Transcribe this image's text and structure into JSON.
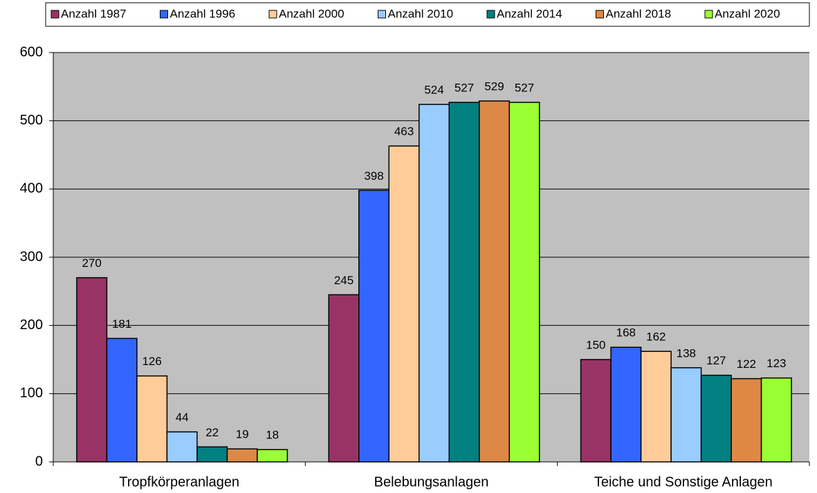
{
  "chart_data": {
    "type": "bar",
    "categories": [
      "Tropfkörperanlagen",
      "Belebungsanlagen",
      "Teiche und Sonstige Anlagen"
    ],
    "series": [
      {
        "name": "Anzahl 1987",
        "color": "#993366",
        "values": [
          270,
          245,
          150
        ]
      },
      {
        "name": "Anzahl 1996",
        "color": "#3366FF",
        "values": [
          181,
          398,
          168
        ]
      },
      {
        "name": "Anzahl 2000",
        "color": "#FFCC99",
        "values": [
          126,
          463,
          162
        ]
      },
      {
        "name": "Anzahl 2010",
        "color": "#99CCFF",
        "values": [
          44,
          524,
          138
        ]
      },
      {
        "name": "Anzahl 2014",
        "color": "#008080",
        "values": [
          22,
          527,
          127
        ]
      },
      {
        "name": "Anzahl 2018",
        "color": "#DD8844",
        "values": [
          19,
          529,
          122
        ]
      },
      {
        "name": "Anzahl 2020",
        "color": "#99FF33",
        "values": [
          18,
          527,
          123
        ]
      }
    ],
    "ylim": [
      0,
      600
    ],
    "yticks": [
      0,
      100,
      200,
      300,
      400,
      500,
      600
    ],
    "grid": true,
    "legend": "top"
  }
}
